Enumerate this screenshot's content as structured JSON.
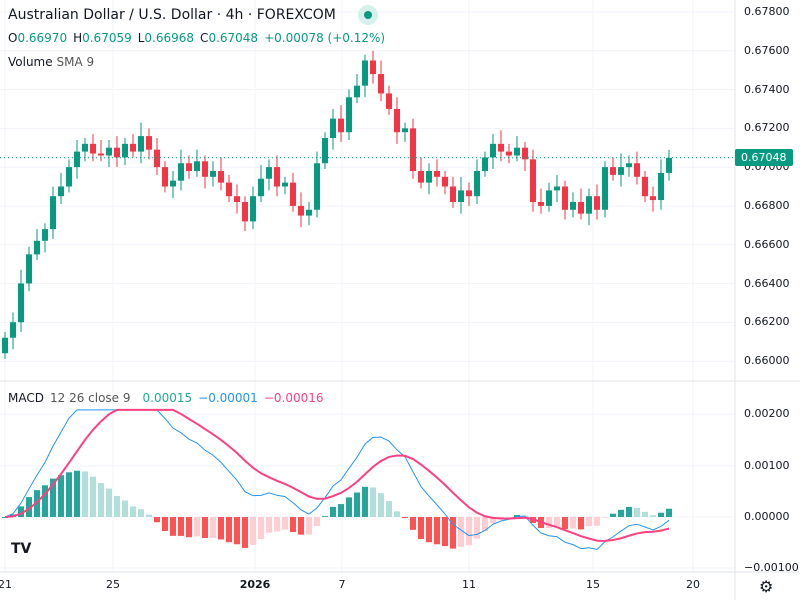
{
  "header": {
    "title": "Australian Dollar / U.S. Dollar · 4h · FOREXCOM",
    "ohlc": {
      "o": "0.66970",
      "h": "0.67059",
      "l": "0.66968",
      "c": "0.67048",
      "change": "+0.00078 (+0.12%)"
    },
    "volume_label": "Volume",
    "volume_sub": "SMA 9"
  },
  "macd": {
    "label": "MACD",
    "params": "12 26 close 9",
    "hist": "0.00015",
    "macd": "−0.00001",
    "signal": "−0.00016"
  },
  "price_axis": [
    "0.67800",
    "0.67600",
    "0.67400",
    "0.67200",
    "0.67000",
    "0.66800",
    "0.66600",
    "0.66400",
    "0.66200",
    "0.66000"
  ],
  "macd_axis": [
    "0.00200",
    "0.00100",
    "0.00000",
    "−0.00100"
  ],
  "current_price": "0.67048",
  "time_axis": [
    "21",
    "25",
    "2026",
    "7",
    "11",
    "15",
    "20"
  ],
  "colors": {
    "up": "#089981",
    "down": "#f23645",
    "macd": "#2196f3",
    "signal": "#ff4081"
  },
  "logo": "TV",
  "chart_data": {
    "type": "candlestick",
    "closes": [
      0.6612,
      0.662,
      0.664,
      0.6655,
      0.6662,
      0.6668,
      0.6685,
      0.669,
      0.67,
      0.6708,
      0.6712,
      0.6707,
      0.6706,
      0.671,
      0.6705,
      0.6712,
      0.6708,
      0.6716,
      0.6709,
      0.67,
      0.669,
      0.6693,
      0.6702,
      0.6698,
      0.6703,
      0.6695,
      0.6698,
      0.6692,
      0.6685,
      0.6682,
      0.6672,
      0.6685,
      0.6694,
      0.67,
      0.669,
      0.6692,
      0.668,
      0.6675,
      0.6678,
      0.6702,
      0.6715,
      0.6725,
      0.6718,
      0.6736,
      0.6742,
      0.6755,
      0.6748,
      0.6738,
      0.673,
      0.6718,
      0.672,
      0.6698,
      0.6692,
      0.6698,
      0.6695,
      0.669,
      0.6682,
      0.6688,
      0.6685,
      0.6698,
      0.6705,
      0.6712,
      0.6708,
      0.6706,
      0.671,
      0.6704,
      0.6682,
      0.668,
      0.6688,
      0.669,
      0.6678,
      0.6682,
      0.6676,
      0.6685,
      0.6678,
      0.67,
      0.6696,
      0.67,
      0.6702,
      0.6695,
      0.6685,
      0.6683,
      0.6697,
      0.67048
    ],
    "ylim": [
      0.66,
      0.678
    ]
  }
}
